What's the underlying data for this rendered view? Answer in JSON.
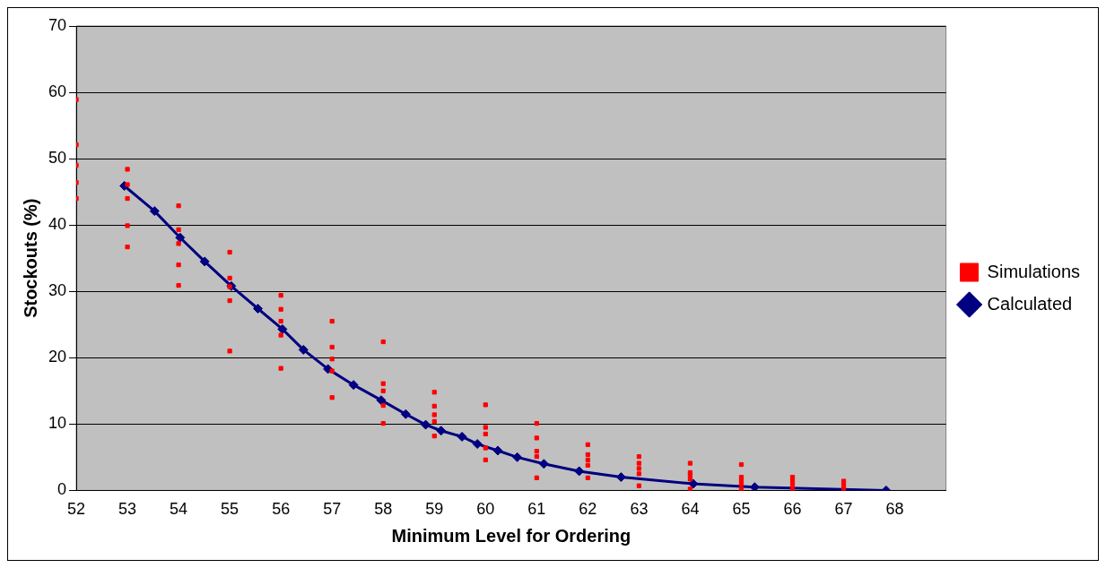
{
  "chart_data": {
    "type": "line",
    "xlabel": "Minimum Level for Ordering",
    "ylabel": "Stockouts (%)",
    "xlim": [
      52,
      69
    ],
    "xticks": [
      52,
      53,
      54,
      55,
      56,
      57,
      58,
      59,
      60,
      61,
      62,
      63,
      64,
      65,
      66,
      67,
      68
    ],
    "ylim": [
      0,
      70
    ],
    "yticks": [
      0,
      10,
      20,
      30,
      40,
      50,
      60,
      70
    ],
    "grid": "y",
    "legend": "right",
    "series": [
      {
        "name": "Simulations",
        "type": "scatter",
        "marker": "square",
        "color": "#ff0000",
        "x": [
          52,
          52,
          52,
          52,
          52,
          53,
          53,
          53,
          53,
          53,
          54,
          54,
          54,
          54,
          54,
          55,
          55,
          55,
          55,
          55,
          56,
          56,
          56,
          56,
          56,
          57,
          57,
          57,
          57,
          57,
          58,
          58,
          58,
          58,
          58,
          59,
          59,
          59,
          59,
          59,
          60,
          60,
          60,
          60,
          60,
          61,
          61,
          61,
          61,
          61,
          62,
          62,
          62,
          62,
          62,
          63,
          63,
          63,
          63,
          63,
          64,
          64,
          64,
          64,
          64,
          65,
          65,
          65,
          65,
          65,
          66,
          66,
          66,
          66,
          67,
          67,
          67
        ],
        "values": [
          58.9,
          52.1,
          49.0,
          46.4,
          44.0,
          48.4,
          46.1,
          44.0,
          39.9,
          36.7,
          42.9,
          39.3,
          37.2,
          34.0,
          30.9,
          35.9,
          32.0,
          30.7,
          28.6,
          21.0,
          29.4,
          27.3,
          25.5,
          23.4,
          18.4,
          25.5,
          21.6,
          19.8,
          18.0,
          14.0,
          22.4,
          16.1,
          15.0,
          12.8,
          10.1,
          14.8,
          12.7,
          11.4,
          10.4,
          8.2,
          12.9,
          9.5,
          8.5,
          6.4,
          4.6,
          10.1,
          7.9,
          5.9,
          5.1,
          1.9,
          6.9,
          5.4,
          4.6,
          3.8,
          1.9,
          5.1,
          4.1,
          3.3,
          2.5,
          0.7,
          4.1,
          2.7,
          2.3,
          1.7,
          0.2,
          3.9,
          2.0,
          1.5,
          0.9,
          0.2,
          2.0,
          1.5,
          0.9,
          0.2,
          1.4,
          0.8,
          0.2
        ]
      },
      {
        "name": "Calculated",
        "marker": "diamond",
        "color": "#000080",
        "x": [
          52.94,
          53.53,
          54.03,
          54.51,
          55.03,
          55.55,
          56.03,
          56.44,
          56.92,
          57.42,
          57.96,
          58.44,
          58.83,
          59.13,
          59.54,
          59.84,
          60.24,
          60.62,
          61.14,
          61.83,
          62.65,
          64.06,
          65.26,
          67.83
        ],
        "values": [
          45.9,
          42.1,
          38.1,
          34.5,
          30.8,
          27.4,
          24.3,
          21.2,
          18.3,
          15.9,
          13.6,
          11.5,
          9.9,
          9.0,
          8.1,
          7.0,
          6.0,
          5.0,
          4.0,
          2.9,
          2.0,
          1.0,
          0.5,
          0.0
        ]
      }
    ]
  }
}
